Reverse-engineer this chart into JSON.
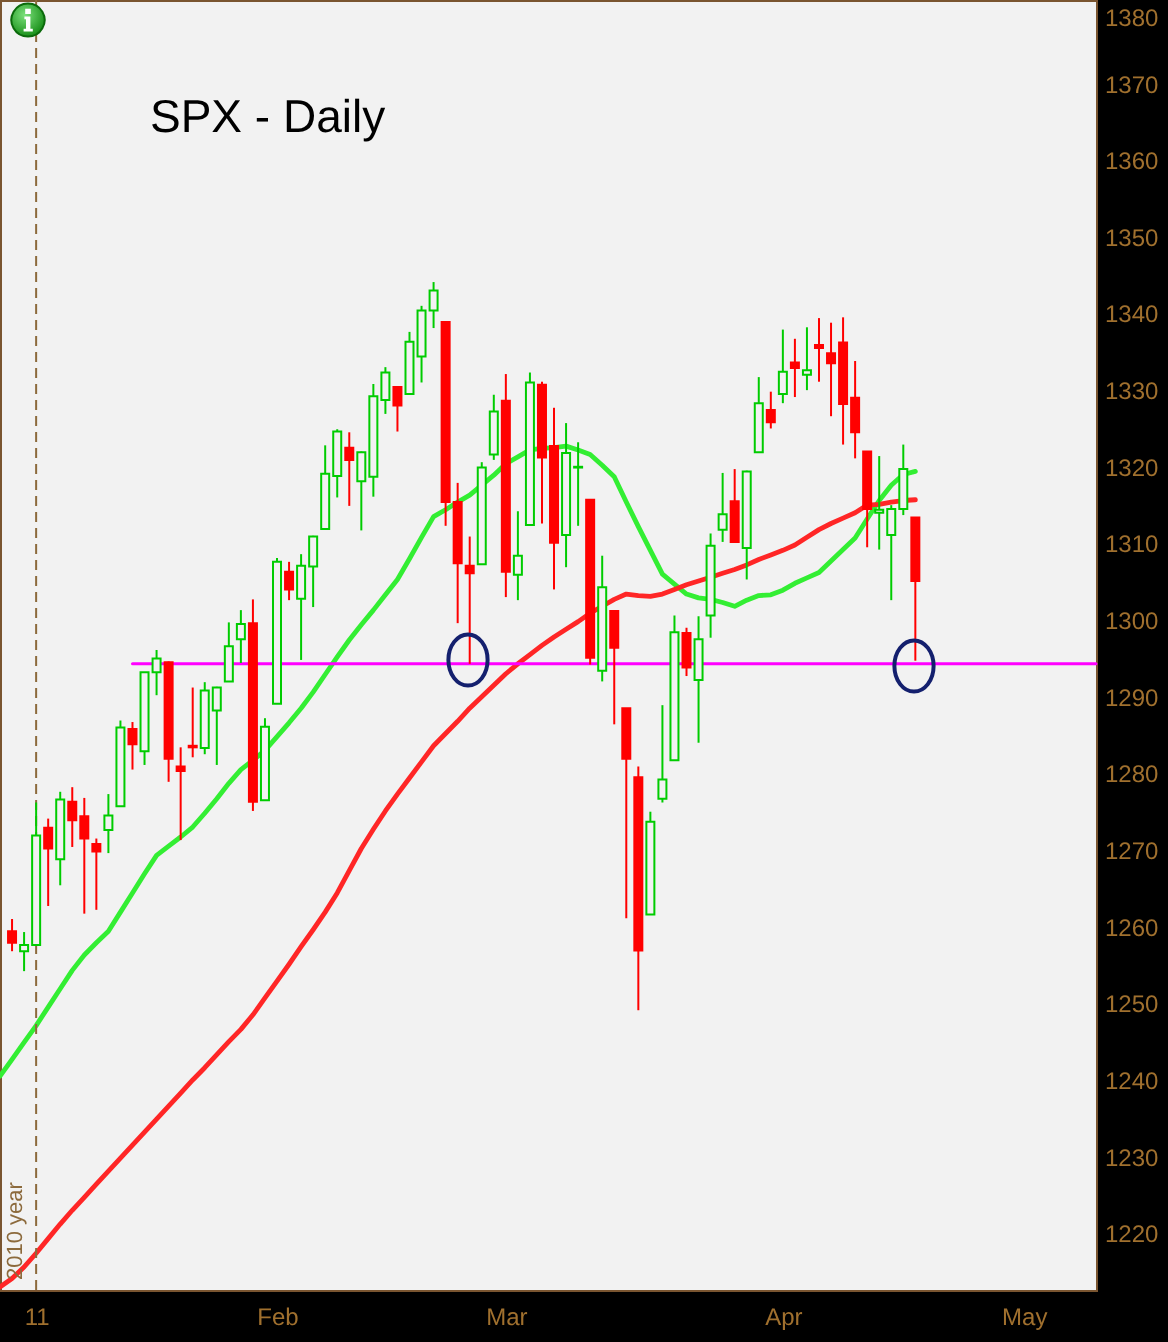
{
  "chart_data": {
    "type": "candlestick",
    "title": "SPX - Daily",
    "categories": [
      null,
      null,
      null,
      "11",
      null,
      null,
      null,
      null,
      null,
      null,
      null,
      null,
      null,
      null,
      null,
      null,
      null,
      null,
      null,
      null,
      null,
      null,
      null,
      "Feb",
      null,
      null,
      null,
      null,
      null,
      null,
      null,
      null,
      null,
      null,
      null,
      null,
      null,
      null,
      null,
      null,
      null,
      null,
      "Mar",
      null,
      null,
      null,
      null,
      null,
      null,
      null,
      null,
      null,
      null,
      null,
      null,
      null,
      null,
      null,
      null,
      null,
      null,
      null,
      null,
      null,
      null,
      "Apr",
      null,
      null,
      null,
      null,
      null,
      null,
      null,
      null,
      null,
      null,
      null,
      null,
      null,
      null,
      null,
      null,
      null,
      null,
      null,
      "May",
      null,
      null,
      null,
      null,
      null,
      null
    ],
    "ohlc": [
      null,
      [
        1259.4,
        1261.0,
        1256.8,
        1257.9
      ],
      [
        1256.8,
        1259.3,
        1254.2,
        1257.6
      ],
      [
        1257.6,
        1276.2,
        1257.6,
        1271.9
      ],
      [
        1272.9,
        1274.1,
        1262.7,
        1270.2
      ],
      [
        1268.8,
        1277.6,
        1265.4,
        1276.6
      ],
      [
        1276.3,
        1278.2,
        1270.4,
        1273.9
      ],
      [
        1274.4,
        1276.8,
        1261.7,
        1271.5
      ],
      [
        1270.8,
        1271.5,
        1262.2,
        1269.8
      ],
      [
        1272.6,
        1277.3,
        1269.6,
        1274.5
      ],
      [
        1275.7,
        1286.9,
        1275.7,
        1286.0
      ],
      [
        1285.8,
        1286.7,
        1280.5,
        1283.8
      ],
      [
        1282.9,
        1293.2,
        1281.1,
        1293.2
      ],
      [
        1293.2,
        1296.1,
        1290.2,
        1295.0
      ],
      [
        1294.5,
        1294.6,
        1278.9,
        1281.9
      ],
      [
        1280.9,
        1283.4,
        1271.3,
        1280.3
      ],
      [
        1283.6,
        1291.2,
        1282.1,
        1283.4
      ],
      [
        1283.3,
        1291.9,
        1282.5,
        1290.8
      ],
      [
        1288.2,
        1291.3,
        1281.1,
        1291.2
      ],
      [
        1292.0,
        1299.7,
        1292.0,
        1296.6
      ],
      [
        1297.5,
        1301.3,
        1294.4,
        1299.5
      ],
      [
        1299.6,
        1302.7,
        1275.1,
        1276.3
      ],
      [
        1276.5,
        1287.2,
        1276.5,
        1286.1
      ],
      [
        1289.1,
        1308.1,
        1289.1,
        1307.6
      ],
      [
        1306.3,
        1307.6,
        1302.6,
        1304.0
      ],
      [
        1302.8,
        1308.6,
        1294.8,
        1307.1
      ],
      [
        1307.0,
        1311.0,
        1301.7,
        1310.9
      ],
      [
        1311.9,
        1322.8,
        1311.9,
        1319.1
      ],
      [
        1318.8,
        1324.9,
        1316.0,
        1324.6
      ],
      [
        1322.5,
        1324.5,
        1314.9,
        1320.9
      ],
      [
        1318.1,
        1322.0,
        1311.7,
        1321.9
      ],
      [
        1318.7,
        1330.8,
        1316.1,
        1329.2
      ],
      [
        1328.7,
        1333.0,
        1326.9,
        1332.3
      ],
      [
        1330.4,
        1330.4,
        1324.6,
        1328.0
      ],
      [
        1329.5,
        1337.6,
        1329.5,
        1336.3
      ],
      [
        1334.4,
        1341.0,
        1331.0,
        1340.4
      ],
      [
        1340.4,
        1344.1,
        1338.1,
        1343.0
      ],
      [
        1338.9,
        1338.9,
        1312.3,
        1315.4
      ],
      [
        1315.4,
        1317.9,
        1299.6,
        1307.4
      ],
      [
        1307.1,
        1310.9,
        1294.3,
        1306.1
      ],
      [
        1307.3,
        1320.6,
        1307.3,
        1319.9
      ],
      [
        1321.6,
        1329.4,
        1320.9,
        1327.2
      ],
      [
        1328.6,
        1332.1,
        1303.0,
        1306.3
      ],
      [
        1305.9,
        1314.2,
        1302.6,
        1308.4
      ],
      [
        1312.4,
        1332.3,
        1312.4,
        1331.0
      ],
      [
        1330.7,
        1331.1,
        1312.6,
        1321.2
      ],
      [
        1322.7,
        1327.7,
        1304.0,
        1310.1
      ],
      [
        1311.1,
        1325.7,
        1306.9,
        1321.8
      ],
      [
        1319.9,
        1323.2,
        1312.3,
        1320.0
      ],
      [
        1315.7,
        1315.7,
        1294.2,
        1295.1
      ],
      [
        1293.4,
        1308.4,
        1292.0,
        1304.3
      ],
      [
        1301.2,
        1301.2,
        1286.4,
        1296.4
      ],
      [
        1288.5,
        1288.5,
        1261.1,
        1281.9
      ],
      [
        1279.5,
        1280.9,
        1249.1,
        1256.9
      ],
      [
        1261.6,
        1275.0,
        1261.6,
        1273.7
      ],
      [
        1276.7,
        1288.9,
        1276.2,
        1279.2
      ],
      [
        1281.7,
        1300.6,
        1281.7,
        1298.4
      ],
      [
        1298.3,
        1299.0,
        1292.7,
        1293.8
      ],
      [
        1292.2,
        1300.5,
        1284.0,
        1297.5
      ],
      [
        1300.6,
        1311.3,
        1297.7,
        1309.7
      ],
      [
        1311.8,
        1319.2,
        1310.2,
        1313.8
      ],
      [
        1315.5,
        1319.7,
        1310.2,
        1310.2
      ],
      [
        1309.4,
        1319.5,
        1305.3,
        1319.4
      ],
      [
        1321.9,
        1331.7,
        1321.9,
        1328.3
      ],
      [
        1327.4,
        1329.8,
        1325.0,
        1325.8
      ],
      [
        1329.5,
        1337.9,
        1328.3,
        1332.4
      ],
      [
        1333.6,
        1336.7,
        1329.1,
        1332.9
      ],
      [
        1332.0,
        1338.2,
        1330.0,
        1332.6
      ],
      [
        1335.9,
        1339.4,
        1331.1,
        1335.5
      ],
      [
        1334.8,
        1338.8,
        1326.6,
        1333.5
      ],
      [
        1336.2,
        1339.5,
        1322.9,
        1328.2
      ],
      [
        1329.0,
        1333.8,
        1321.1,
        1324.5
      ],
      [
        1322.0,
        1322.0,
        1309.5,
        1314.5
      ],
      [
        1314.0,
        1321.4,
        1309.2,
        1314.4
      ],
      [
        1311.1,
        1315.0,
        1302.6,
        1314.5
      ],
      [
        1314.5,
        1322.9,
        1313.7,
        1319.7
      ],
      [
        1313.4,
        1313.4,
        1294.7,
        1305.1
      ],
      null,
      null,
      null,
      null,
      null,
      null,
      null,
      null,
      null,
      null,
      null,
      null,
      null,
      null,
      null
    ],
    "colors": [
      null,
      "#ff0000",
      "#00cc00",
      "#00cc00",
      "#ff0000",
      "#00cc00",
      "#ff0000",
      "#ff0000",
      "#ff0000",
      "#00cc00",
      "#00cc00",
      "#ff0000",
      "#00cc00",
      "#00cc00",
      "#ff0000",
      "#ff0000",
      "#ff0000",
      "#00cc00",
      "#00cc00",
      "#00cc00",
      "#00cc00",
      "#ff0000",
      "#00cc00",
      "#00cc00",
      "#ff0000",
      "#00cc00",
      "#00cc00",
      "#00cc00",
      "#00cc00",
      "#ff0000",
      "#00cc00",
      "#00cc00",
      "#00cc00",
      "#ff0000",
      "#00cc00",
      "#00cc00",
      "#00cc00",
      "#ff0000",
      "#ff0000",
      "#ff0000",
      "#00cc00",
      "#00cc00",
      "#ff0000",
      "#00cc00",
      "#00cc00",
      "#ff0000",
      "#ff0000",
      "#00cc00",
      "#00cc00",
      "#ff0000",
      "#00cc00",
      "#ff0000",
      "#ff0000",
      "#ff0000",
      "#00cc00",
      "#00cc00",
      "#00cc00",
      "#ff0000",
      "#00cc00",
      "#00cc00",
      "#00cc00",
      "#ff0000",
      "#00cc00",
      "#00cc00",
      "#ff0000",
      "#00cc00",
      "#ff0000",
      "#00cc00",
      "#ff0000",
      "#ff0000",
      "#ff0000",
      "#ff0000",
      "#ff0000",
      "#00cc00",
      "#00cc00",
      "#00cc00",
      "#ff0000",
      null,
      null,
      null,
      null,
      null,
      null,
      null,
      null,
      null,
      null,
      null,
      null,
      null,
      null,
      null
    ],
    "series": [
      {
        "type": "line",
        "color": "#33ee33",
        "values": [
          1240.5,
          1242.7,
          1244.9,
          1247.1,
          1249.5,
          1251.9,
          1254.3,
          1256.3,
          1257.9,
          1259.4,
          1261.9,
          1264.4,
          1266.9,
          1269.3,
          1270.5,
          1271.7,
          1273.0,
          1274.8,
          1276.7,
          1278.7,
          1280.5,
          1281.7,
          1283.0,
          1284.8,
          1286.6,
          1288.5,
          1290.6,
          1292.9,
          1295.2,
          1297.4,
          1299.4,
          1301.3,
          1303.3,
          1305.3,
          1308.0,
          1310.8,
          1313.5,
          1314.4,
          1315.4,
          1316.3,
          1317.6,
          1318.9,
          1320.4,
          1321.3,
          1322.2,
          1322.4,
          1322.5,
          1322.7,
          1322.2,
          1321.6,
          1320.2,
          1318.7,
          1315.4,
          1312.2,
          1309.1,
          1306.0,
          1304.7,
          1303.4,
          1302.9,
          1302.7,
          1302.3,
          1301.8,
          1302.6,
          1303.2,
          1303.3,
          1303.9,
          1304.8,
          1305.5,
          1306.2,
          1307.7,
          1309.2,
          1310.7,
          1313.2,
          1315.6,
          1317.6,
          1319.0,
          1319.4,
          null,
          null,
          null,
          null,
          null,
          null,
          null,
          null,
          null,
          null,
          null,
          null,
          null,
          null,
          null
        ]
      },
      {
        "type": "line",
        "color": "#ff2626",
        "values": [
          1213.0,
          1214.1,
          1215.6,
          1217.4,
          1219.3,
          1221.2,
          1223.0,
          1224.7,
          1226.4,
          1228.1,
          1229.8,
          1231.5,
          1233.2,
          1234.9,
          1236.6,
          1238.3,
          1240.0,
          1241.6,
          1243.3,
          1245.0,
          1246.6,
          1248.5,
          1250.7,
          1252.9,
          1255.1,
          1257.4,
          1259.6,
          1261.9,
          1264.4,
          1267.3,
          1270.2,
          1272.7,
          1275.1,
          1277.3,
          1279.4,
          1281.5,
          1283.6,
          1285.2,
          1286.8,
          1288.5,
          1290.0,
          1291.5,
          1293.0,
          1294.3,
          1295.5,
          1296.7,
          1297.8,
          1298.8,
          1299.8,
          1300.9,
          1301.8,
          1302.7,
          1303.4,
          1303.2,
          1303.1,
          1303.4,
          1304.0,
          1304.6,
          1305.1,
          1305.6,
          1306.1,
          1306.6,
          1307.2,
          1307.9,
          1308.5,
          1309.1,
          1309.8,
          1310.8,
          1311.8,
          1312.6,
          1313.3,
          1314.0,
          1315.0,
          1315.1,
          1315.4,
          1315.6,
          1315.7,
          null,
          null,
          null,
          null,
          null,
          null,
          null,
          null,
          null,
          null,
          null,
          null,
          null,
          null,
          null
        ]
      },
      {
        "type": "line",
        "color": "#ff00ff",
        "values": [
          null,
          null,
          null,
          null,
          null,
          null,
          null,
          null,
          null,
          null,
          null,
          1294.3,
          1294.3,
          1294.3,
          1294.3,
          1294.3,
          1294.3,
          1294.3,
          1294.3,
          1294.3,
          1294.3,
          1294.3,
          1294.3,
          1294.3,
          1294.3,
          1294.3,
          1294.3,
          1294.3,
          1294.3,
          1294.3,
          1294.3,
          1294.3,
          1294.3,
          1294.3,
          1294.3,
          1294.3,
          1294.3,
          1294.3,
          1294.3,
          1294.3,
          1294.3,
          1294.3,
          1294.3,
          1294.3,
          1294.3,
          1294.3,
          1294.3,
          1294.3,
          1294.3,
          1294.3,
          1294.3,
          1294.3,
          1294.3,
          1294.3,
          1294.3,
          1294.3,
          1294.3,
          1294.3,
          1294.3,
          1294.3,
          1294.3,
          1294.3,
          1294.3,
          1294.3,
          1294.3,
          1294.3,
          1294.3,
          1294.3,
          1294.3,
          1294.3,
          1294.3,
          1294.3,
          1294.3,
          1294.3,
          1294.3,
          1294.3,
          1294.3,
          1294.3,
          1294.3,
          1294.3,
          1294.3,
          1294.3,
          1294.3,
          1294.3,
          1294.3,
          1294.3,
          1294.3,
          1294.3,
          1294.3,
          1294.3,
          1294.3,
          1294.3
        ]
      }
    ],
    "ref_lines": [
      {
        "axis": "x",
        "value": "11",
        "label": "2010 year",
        "color": "#8c6a3c",
        "line_style": "dashed"
      }
    ],
    "ylim": [
      1212.6,
      1380.9
    ],
    "yticks": [
      1220,
      1230,
      1240,
      1250,
      1260,
      1270,
      1280,
      1290,
      1300,
      1310,
      1320,
      1330,
      1340,
      1350,
      1360,
      1370,
      1380
    ]
  }
}
